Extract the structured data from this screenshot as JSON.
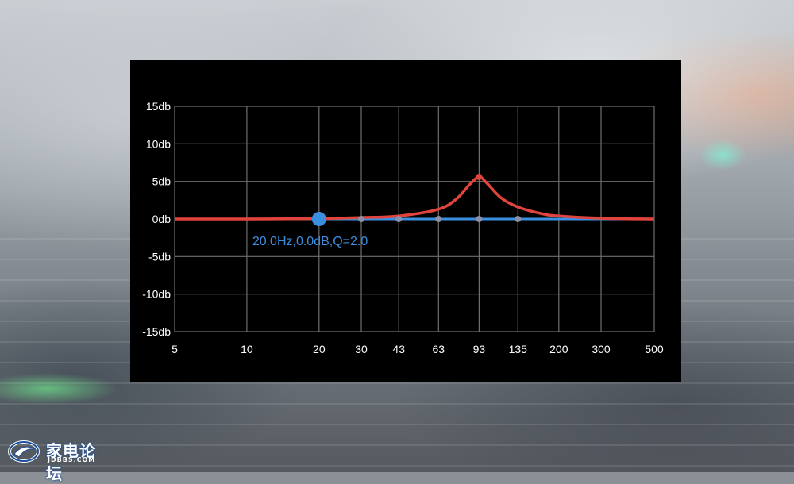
{
  "colors": {
    "panel_bg": "#000000",
    "grid": "#6e6e6e",
    "tick_text": "#ffffff",
    "flat_line": "#3b8fe0",
    "curve": "#e0443c",
    "point": "#3b8fe0",
    "label": "#3b8fe0"
  },
  "chart_data": {
    "type": "line",
    "title": "",
    "xlabel": "",
    "ylabel": "",
    "x_scale": "log",
    "xlim": [
      5,
      500
    ],
    "ylim": [
      -15,
      15
    ],
    "x_ticks": [
      5,
      10,
      20,
      30,
      43,
      63,
      93,
      135,
      200,
      300,
      500
    ],
    "x_tick_labels": [
      "5",
      "10",
      "20",
      "30",
      "43",
      "63",
      "93",
      "135",
      "200",
      "300",
      "500"
    ],
    "y_ticks": [
      15,
      10,
      5,
      0,
      -5,
      -10,
      -15
    ],
    "y_tick_labels": [
      "15db",
      "10db",
      "5db",
      "0db",
      "-5db",
      "-10db",
      "-15db"
    ],
    "grid": true,
    "series": [
      {
        "kind": "flat-line",
        "x": [
          5,
          500
        ],
        "y": [
          0,
          0
        ]
      },
      {
        "kind": "curve",
        "x": [
          5,
          10,
          20,
          30,
          43,
          63,
          75,
          85,
          93,
          100,
          115,
          135,
          170,
          200,
          300,
          500
        ],
        "y": [
          0,
          0,
          0.05,
          0.2,
          0.4,
          1.3,
          2.7,
          4.6,
          5.6,
          4.8,
          2.8,
          1.6,
          0.7,
          0.4,
          0.1,
          0
        ]
      }
    ],
    "control_points": [
      {
        "x": 20,
        "y": 0,
        "selected": true
      },
      {
        "x": 30,
        "y": 0
      },
      {
        "x": 43,
        "y": 0
      },
      {
        "x": 63,
        "y": 0
      },
      {
        "x": 93,
        "y": 0
      },
      {
        "x": 135,
        "y": 0
      },
      {
        "x": 93,
        "y": 5.6,
        "on_curve": true
      }
    ],
    "annotation": {
      "text": "20.0Hz,0.0dB,Q=2.0",
      "x": 20,
      "y": 0
    }
  },
  "watermark": {
    "text": "家电论坛",
    "sub": "JDBBS.COM"
  }
}
